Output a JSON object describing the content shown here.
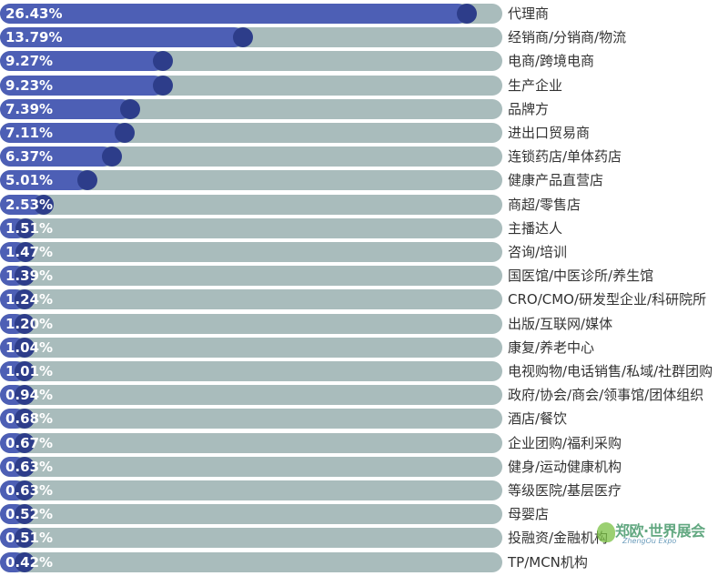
{
  "chart_data": {
    "type": "bar",
    "orientation": "horizontal",
    "categories": [
      "代理商",
      "经销商/分销商/物流",
      "电商/跨境电商",
      "生产企业",
      "品牌方",
      "进出口贸易商",
      "连锁药店/单体药店",
      "健康产品直营店",
      "商超/零售店",
      "主播达人",
      "咨询/培训",
      "国医馆/中医诊所/养生馆",
      "CRO/CMO/研发型企业/科研院所",
      "出版/互联网/媒体",
      "康复/养老中心",
      "电视购物/电话销售/私域/社群团购",
      "政府/协会/商会/领事馆/团体组织",
      "酒店/餐饮",
      "企业团购/福利采购",
      "健身/运动健康机构",
      "等级医院/基层医疗",
      "母婴店",
      "投融资/金融机构",
      "TP/MCN机构"
    ],
    "values": [
      26.43,
      13.79,
      9.27,
      9.23,
      7.39,
      7.11,
      6.37,
      5.01,
      2.53,
      1.51,
      1.47,
      1.39,
      1.24,
      1.2,
      1.04,
      1.01,
      0.94,
      0.68,
      0.67,
      0.63,
      0.63,
      0.52,
      0.51,
      0.42
    ],
    "labels": [
      "26.43%",
      "13.79%",
      "9.27%",
      "9.23%",
      "7.39%",
      "7.11%",
      "6.37%",
      "5.01%",
      "2.53%",
      "1.51%",
      "1.47%",
      "1.39%",
      "1.24%",
      "1.20%",
      "1.04%",
      "1.01%",
      "0.94%",
      "0.68%",
      "0.67%",
      "0.63%",
      "0.63%",
      "0.52%",
      "0.51%",
      "0.42%"
    ],
    "title": "",
    "xlabel": "",
    "ylabel": "",
    "grid": false,
    "legend": "none",
    "colors": {
      "fill": "#4d5fb5",
      "knob": "#2d3d8a",
      "track": "#a9bcbc",
      "label": "#ffffff",
      "category_text": "#333333"
    }
  },
  "watermark": {
    "text": "郑欧·世界展会",
    "subtext": "ZhengOu Expo"
  }
}
